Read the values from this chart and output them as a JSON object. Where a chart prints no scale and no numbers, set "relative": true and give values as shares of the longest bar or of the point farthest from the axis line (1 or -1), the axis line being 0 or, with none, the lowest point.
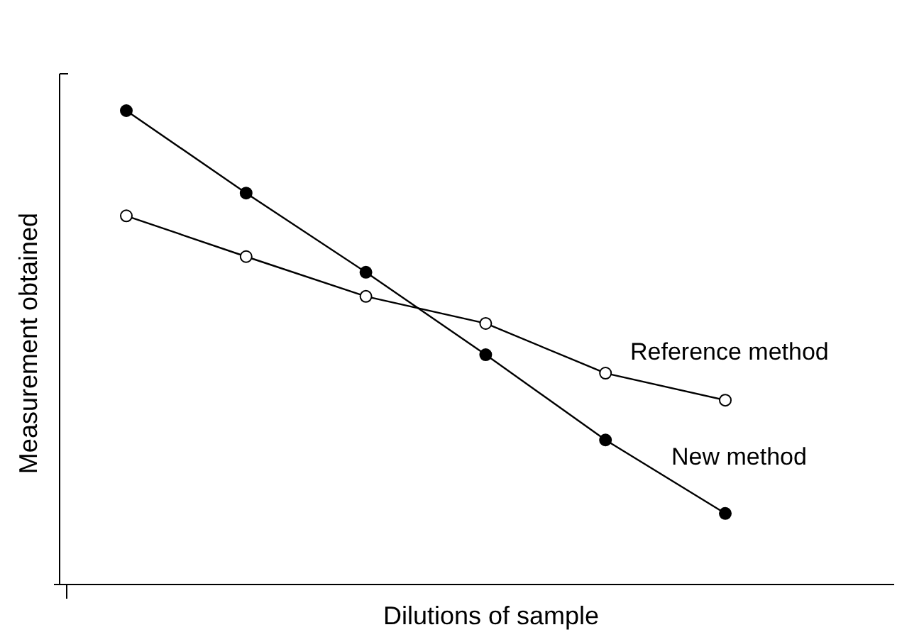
{
  "chart_data": {
    "type": "line",
    "xlabel": "Dilutions of sample",
    "ylabel": "Measurement obtained",
    "relative": true,
    "marker": "circle",
    "line_style": "solid",
    "categories": [
      null,
      null,
      null,
      null,
      null,
      null
    ],
    "series": [
      {
        "name": "New method",
        "color": "#000000",
        "values": [
          1,
          0.826,
          0.659,
          0.485,
          0.305,
          0.15
        ]
      },
      {
        "name": "Reference method",
        "color": "#000000",
        "values": [
          0.778,
          0.692,
          0.608,
          0.551,
          0.446,
          0.389
        ]
      }
    ]
  }
}
